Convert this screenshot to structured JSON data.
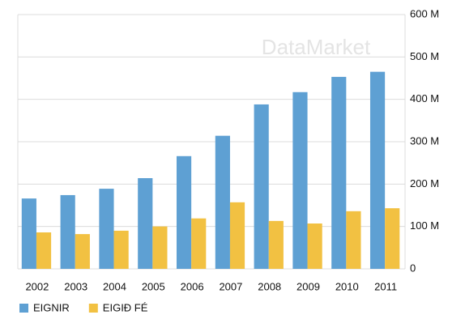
{
  "chart_data": {
    "type": "bar",
    "watermark": "DataMarket",
    "categories": [
      "2002",
      "2003",
      "2004",
      "2005",
      "2006",
      "2007",
      "2008",
      "2009",
      "2010",
      "2011"
    ],
    "series": [
      {
        "name": "EIGNIR",
        "color": "#5ea0d3",
        "values": [
          166,
          174,
          189,
          214,
          266,
          314,
          388,
          417,
          453,
          465
        ]
      },
      {
        "name": "EIGIÐ FÉ",
        "color": "#f2c142",
        "values": [
          86,
          82,
          90,
          100,
          119,
          157,
          113,
          107,
          136,
          143
        ]
      }
    ],
    "ylim": [
      0,
      600
    ],
    "yticks": [
      0,
      {
        "value": 100,
        "label": "100 M"
      },
      {
        "value": 200,
        "label": "200 M"
      },
      {
        "value": 300,
        "label": "300 M"
      },
      {
        "value": 400,
        "label": "400 M"
      },
      {
        "value": 500,
        "label": "500 M"
      },
      {
        "value": 600,
        "label": "600 M"
      }
    ],
    "grid": true,
    "legend": "bottom-left",
    "y_axis_side": "right"
  }
}
